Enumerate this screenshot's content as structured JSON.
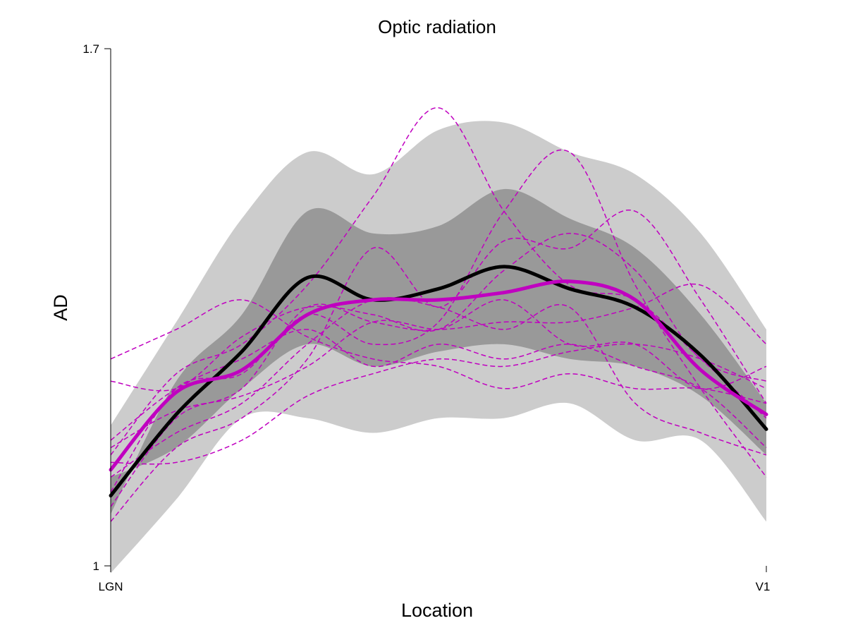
{
  "chart_data": {
    "type": "line",
    "title": "Optic radiation",
    "xlabel": "Location",
    "ylabel": "AD",
    "x_tick_labels": [
      "LGN",
      "V1"
    ],
    "y_tick_labels": [
      "1",
      "1.7"
    ],
    "xlim": [
      0,
      100
    ],
    "ylim": [
      1,
      1.7
    ],
    "grid": false,
    "legend": "none",
    "x": [
      0,
      10,
      20,
      30,
      40,
      50,
      60,
      70,
      80,
      90,
      100
    ],
    "bands": [
      {
        "name": "",
        "color": "#cccccc",
        "lower": [
          0.99,
          1.09,
          1.2,
          1.2,
          1.18,
          1.2,
          1.2,
          1.22,
          1.17,
          1.17,
          1.06
        ],
        "upper": [
          1.19,
          1.33,
          1.47,
          1.56,
          1.53,
          1.59,
          1.6,
          1.56,
          1.53,
          1.45,
          1.32
        ]
      },
      {
        "name": "",
        "color": "#999999",
        "lower": [
          1.12,
          1.16,
          1.24,
          1.3,
          1.27,
          1.29,
          1.3,
          1.28,
          1.27,
          1.23,
          1.15
        ]
      }
    ],
    "series": [
      {
        "name": "",
        "color": "#000000",
        "style": "solid-thick",
        "values": [
          1.095,
          1.205,
          1.29,
          1.39,
          1.36,
          1.375,
          1.405,
          1.375,
          1.35,
          1.285,
          1.185
        ]
      },
      {
        "name": "",
        "color": "#c000c0",
        "style": "solid-thick",
        "values": [
          1.13,
          1.235,
          1.265,
          1.34,
          1.36,
          1.36,
          1.37,
          1.385,
          1.36,
          1.265,
          1.205
        ]
      },
      {
        "name": "",
        "color": "#c000c0",
        "style": "dashed",
        "values": [
          1.28,
          1.32,
          1.36,
          1.31,
          1.28,
          1.27,
          1.24,
          1.26,
          1.24,
          1.24,
          1.22
        ]
      },
      {
        "name": "",
        "color": "#c000c0",
        "style": "dashed",
        "values": [
          1.15,
          1.26,
          1.3,
          1.38,
          1.5,
          1.62,
          1.48,
          1.38,
          1.36,
          1.28,
          1.2
        ]
      },
      {
        "name": "",
        "color": "#c000c0",
        "style": "dashed",
        "values": [
          1.1,
          1.24,
          1.26,
          1.34,
          1.3,
          1.33,
          1.48,
          1.56,
          1.38,
          1.24,
          1.12
        ]
      },
      {
        "name": "",
        "color": "#c000c0",
        "style": "dashed",
        "values": [
          1.06,
          1.16,
          1.2,
          1.28,
          1.43,
          1.35,
          1.44,
          1.43,
          1.48,
          1.36,
          1.22
        ]
      },
      {
        "name": "",
        "color": "#c000c0",
        "style": "dashed",
        "values": [
          1.16,
          1.21,
          1.23,
          1.27,
          1.33,
          1.32,
          1.33,
          1.33,
          1.35,
          1.38,
          1.3
        ]
      },
      {
        "name": "",
        "color": "#c000c0",
        "style": "dashed",
        "values": [
          1.17,
          1.24,
          1.28,
          1.32,
          1.27,
          1.3,
          1.28,
          1.3,
          1.27,
          1.24,
          1.16
        ]
      },
      {
        "name": "",
        "color": "#c000c0",
        "style": "dashed",
        "values": [
          1.14,
          1.14,
          1.17,
          1.23,
          1.26,
          1.28,
          1.27,
          1.29,
          1.3,
          1.28,
          1.24
        ]
      },
      {
        "name": "",
        "color": "#c000c0",
        "style": "dashed",
        "values": [
          1.25,
          1.24,
          1.31,
          1.35,
          1.34,
          1.32,
          1.4,
          1.45,
          1.4,
          1.28,
          1.25
        ]
      },
      {
        "name": "",
        "color": "#c000c0",
        "style": "dashed",
        "values": [
          1.08,
          1.2,
          1.24,
          1.35,
          1.33,
          1.32,
          1.36,
          1.3,
          1.3,
          1.24,
          1.27
        ]
      },
      {
        "name": "",
        "color": "#c000c0",
        "style": "dashed",
        "values": [
          1.12,
          1.18,
          1.22,
          1.3,
          1.36,
          1.35,
          1.32,
          1.35,
          1.22,
          1.18,
          1.15
        ]
      }
    ]
  }
}
